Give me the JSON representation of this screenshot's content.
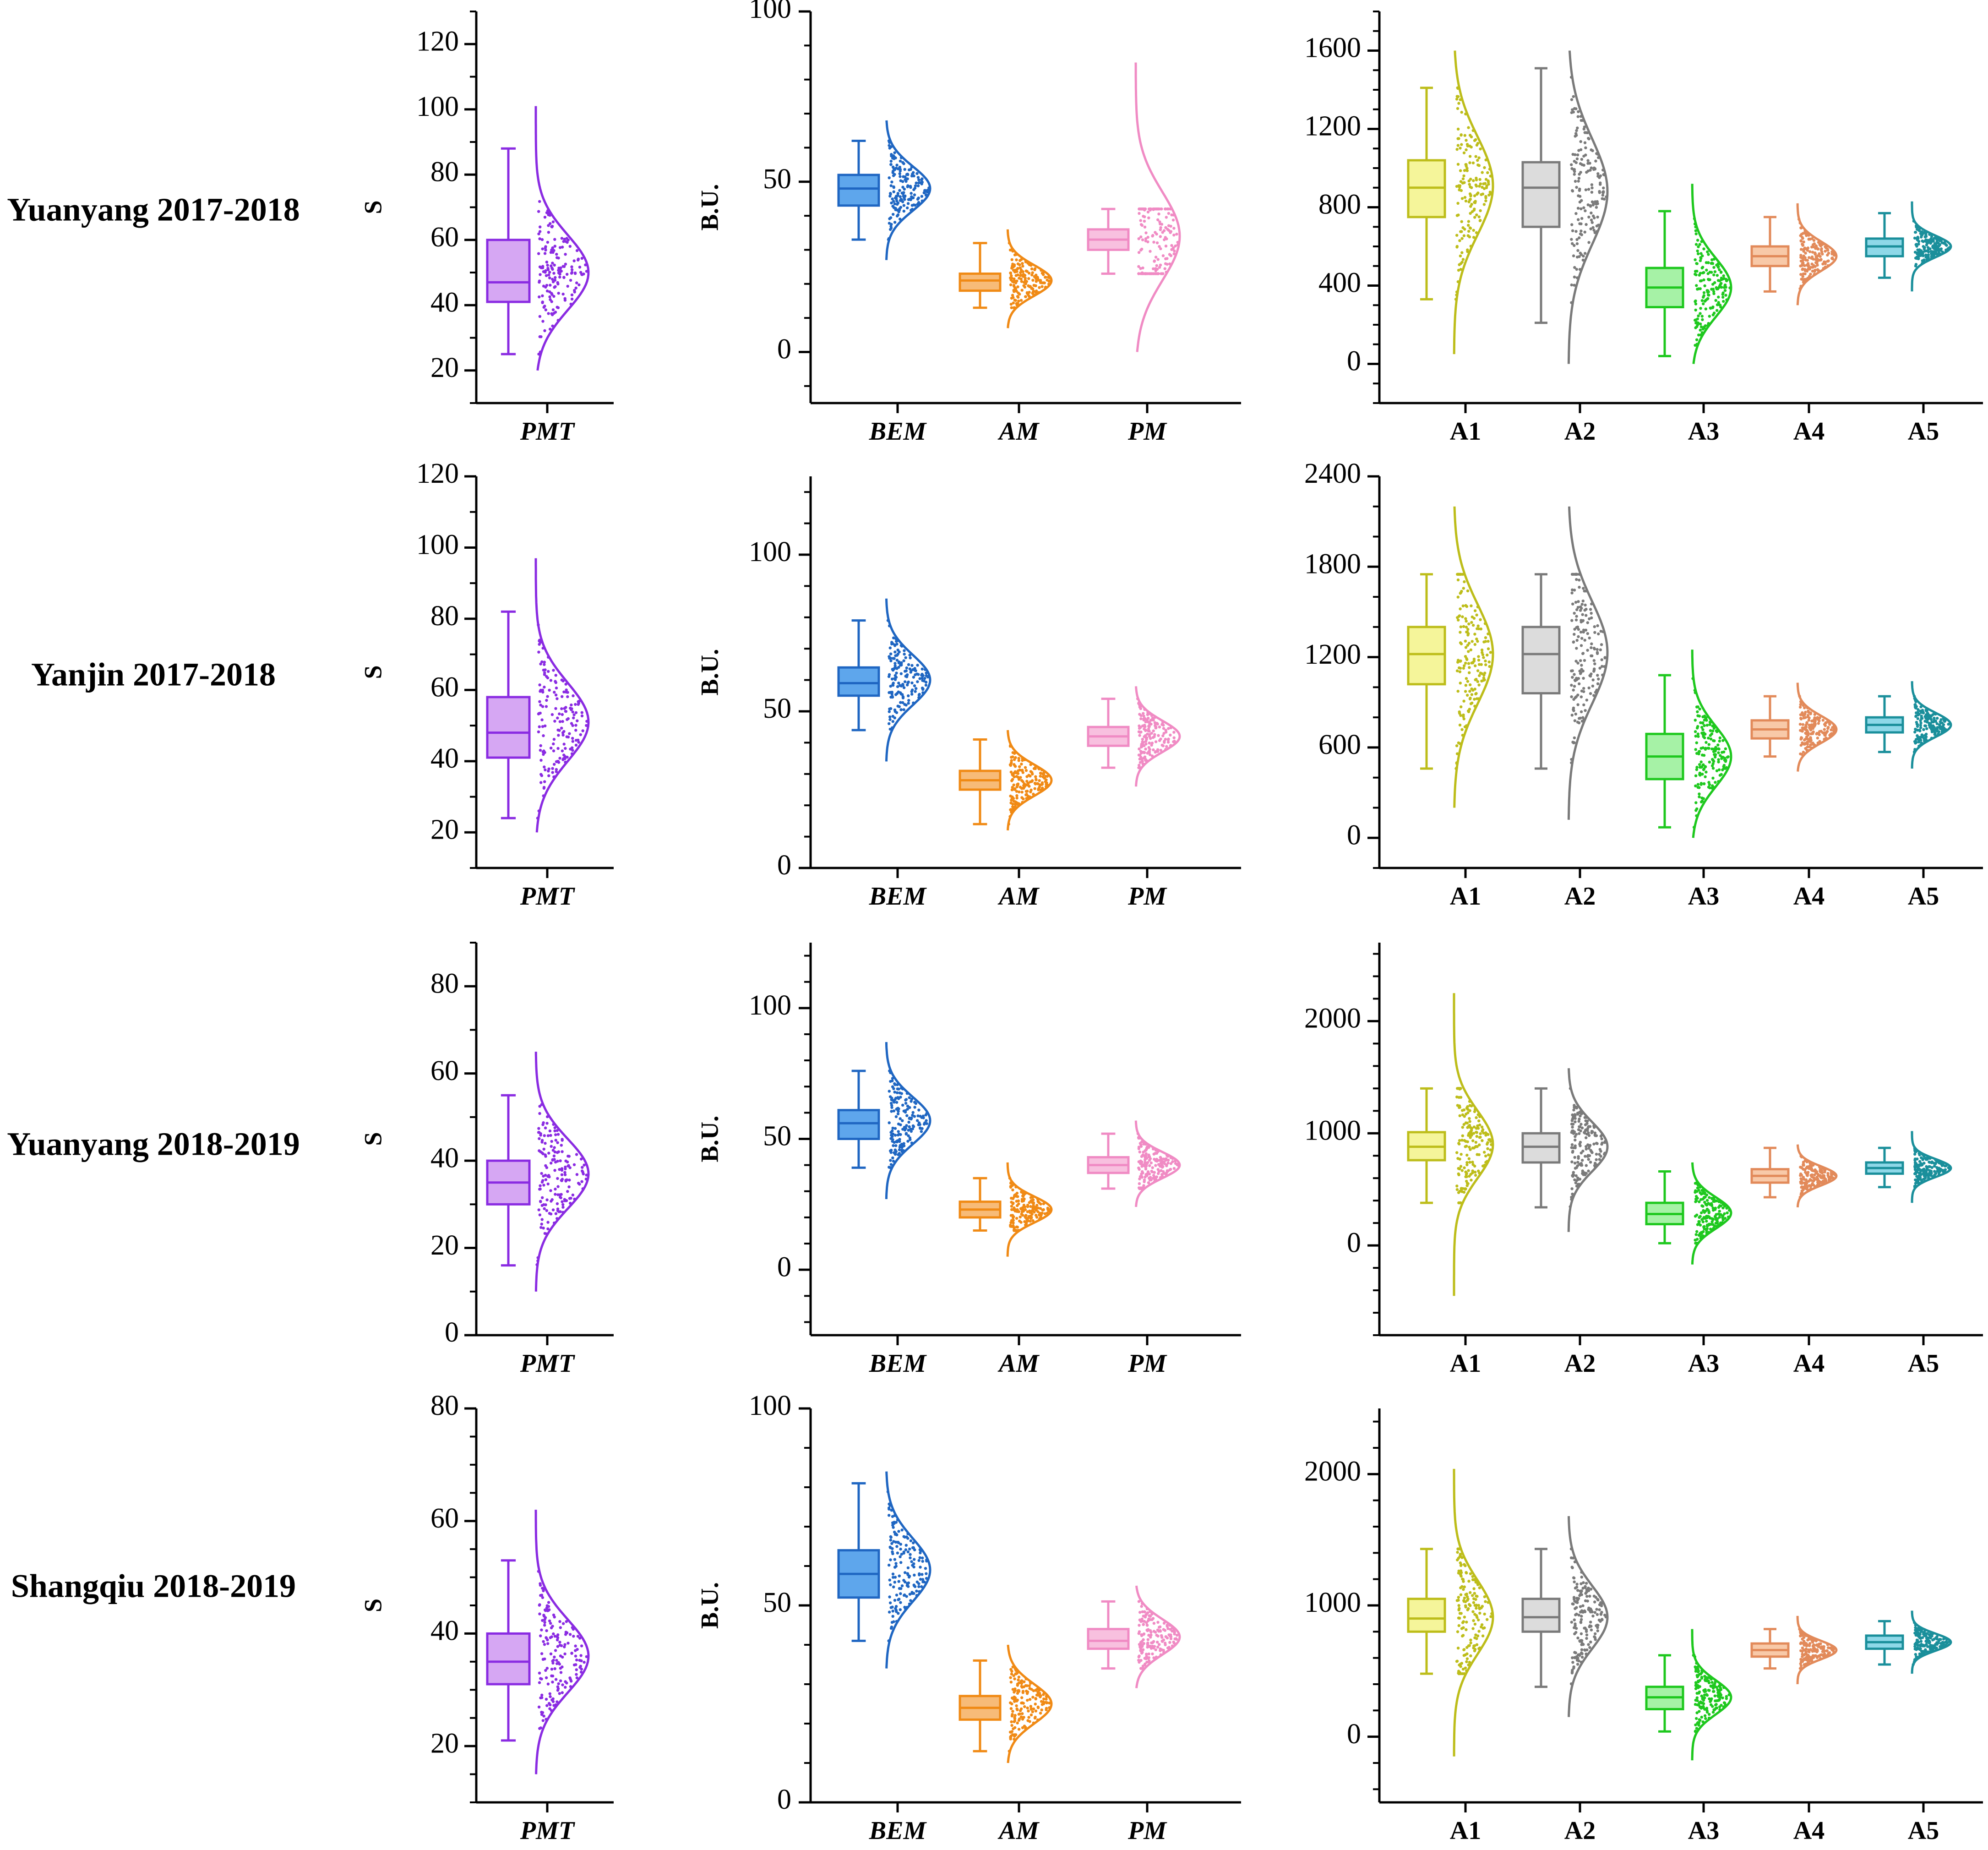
{
  "figure": {
    "rows": [
      {
        "label": "Yuanyang 2017-2018"
      },
      {
        "label": "Yanjin 2017-2018"
      },
      {
        "label": "Yuanyang 2018-2019"
      },
      {
        "label": "Shangqiu 2018-2019"
      }
    ]
  },
  "chart_data": [
    {
      "type": "box-violin",
      "row": 0,
      "title": "",
      "ylabel": "S",
      "ylim": [
        10,
        130
      ],
      "yticks": [
        20,
        40,
        60,
        80,
        100,
        120
      ],
      "ytick_labels": [
        "20",
        "40",
        "60",
        "80",
        "100",
        "120"
      ],
      "minor_step": 10,
      "categories": [
        "PMT"
      ],
      "category_italic": true,
      "series": [
        {
          "name": "PMT",
          "color": "#8a2be2",
          "fill": "#d6a7f3",
          "min": 25,
          "q1": 41,
          "median": 47,
          "q3": 60,
          "max": 88,
          "curve_lo": 20,
          "curve_hi": 101,
          "mean": 50,
          "sd": 11.5
        }
      ]
    },
    {
      "type": "box-violin",
      "row": 0,
      "title": "",
      "ylabel": "B.U.",
      "ylim": [
        -15,
        100
      ],
      "yticks": [
        0,
        50,
        100
      ],
      "ytick_labels": [
        "0",
        "50",
        "100"
      ],
      "minor_step": 10,
      "categories": [
        "BEM",
        "AM",
        "PM"
      ],
      "category_italic": true,
      "series": [
        {
          "name": "BEM",
          "color": "#1f66c2",
          "fill": "#5ea6ec",
          "min": 33,
          "q1": 43,
          "median": 48,
          "q3": 52,
          "max": 62,
          "curve_lo": 27,
          "curve_hi": 68,
          "mean": 48,
          "sd": 6.5
        },
        {
          "name": "AM",
          "color": "#f08a15",
          "fill": "#f7bb78",
          "min": 13,
          "q1": 18,
          "median": 21,
          "q3": 23,
          "max": 32,
          "curve_lo": 7,
          "curve_hi": 36,
          "mean": 21,
          "sd": 4.5
        },
        {
          "name": "PM",
          "color": "#f08bc4",
          "fill": "#f8c0df",
          "min": 23,
          "q1": 30,
          "median": 33,
          "q3": 36,
          "max": 42,
          "curve_lo": 0,
          "curve_hi": 85,
          "mean": 34,
          "sd": 13
        }
      ]
    },
    {
      "type": "box-violin",
      "row": 0,
      "title": "",
      "ylabel": "",
      "ylim": [
        -200,
        1800
      ],
      "yticks": [
        0,
        400,
        800,
        1200,
        1600
      ],
      "ytick_labels": [
        "0",
        "400",
        "800",
        "1200",
        "1600"
      ],
      "minor_step": 100,
      "categories": [
        "A1",
        "A2",
        "A3",
        "A4",
        "A5"
      ],
      "category_italic": false,
      "series": [
        {
          "name": "A1",
          "color": "#bdbd1a",
          "fill": "#f5f59a",
          "min": 330,
          "q1": 750,
          "median": 900,
          "q3": 1040,
          "max": 1410,
          "curve_lo": 50,
          "curve_hi": 1600,
          "mean": 910,
          "sd": 250
        },
        {
          "name": "A2",
          "color": "#7a7a7a",
          "fill": "#dcdcdc",
          "min": 210,
          "q1": 700,
          "median": 900,
          "q3": 1030,
          "max": 1510,
          "curve_lo": 0,
          "curve_hi": 1600,
          "mean": 880,
          "sd": 270
        },
        {
          "name": "A3",
          "color": "#1ec81e",
          "fill": "#a6f2a6",
          "min": 40,
          "q1": 290,
          "median": 390,
          "q3": 490,
          "max": 780,
          "curve_lo": 0,
          "curve_hi": 920,
          "mean": 390,
          "sd": 150
        },
        {
          "name": "A4",
          "color": "#e28a5a",
          "fill": "#f8c9a8",
          "min": 370,
          "q1": 500,
          "median": 550,
          "q3": 600,
          "max": 750,
          "curve_lo": 300,
          "curve_hi": 820,
          "mean": 550,
          "sd": 75
        },
        {
          "name": "A5",
          "color": "#1a8f9b",
          "fill": "#8ed8e8",
          "min": 440,
          "q1": 550,
          "median": 600,
          "q3": 640,
          "max": 770,
          "curve_lo": 370,
          "curve_hi": 830,
          "mean": 600,
          "sd": 55
        }
      ]
    },
    {
      "type": "box-violin",
      "row": 1,
      "title": "",
      "ylabel": "S",
      "ylim": [
        10,
        120
      ],
      "yticks": [
        20,
        40,
        60,
        80,
        100,
        120
      ],
      "ytick_labels": [
        "20",
        "40",
        "60",
        "80",
        "100",
        "120"
      ],
      "minor_step": 10,
      "categories": [
        "PMT"
      ],
      "category_italic": true,
      "series": [
        {
          "name": "PMT",
          "color": "#8a2be2",
          "fill": "#d6a7f3",
          "min": 24,
          "q1": 41,
          "median": 48,
          "q3": 58,
          "max": 82,
          "curve_lo": 20,
          "curve_hi": 97,
          "mean": 51,
          "sd": 11
        }
      ]
    },
    {
      "type": "box-violin",
      "row": 1,
      "title": "",
      "ylabel": "B.U.",
      "ylim": [
        0,
        125
      ],
      "yticks": [
        0,
        50,
        100
      ],
      "ytick_labels": [
        "0",
        "50",
        "100"
      ],
      "minor_step": 10,
      "categories": [
        "BEM",
        "AM",
        "PM"
      ],
      "category_italic": true,
      "series": [
        {
          "name": "BEM",
          "color": "#1f66c2",
          "fill": "#5ea6ec",
          "min": 44,
          "q1": 55,
          "median": 59,
          "q3": 64,
          "max": 79,
          "curve_lo": 34,
          "curve_hi": 86,
          "mean": 60,
          "sd": 8
        },
        {
          "name": "AM",
          "color": "#f08a15",
          "fill": "#f7bb78",
          "min": 14,
          "q1": 25,
          "median": 28,
          "q3": 31,
          "max": 41,
          "curve_lo": 12,
          "curve_hi": 44,
          "mean": 28,
          "sd": 5
        },
        {
          "name": "PM",
          "color": "#f08bc4",
          "fill": "#f8c0df",
          "min": 32,
          "q1": 39,
          "median": 42,
          "q3": 45,
          "max": 54,
          "curve_lo": 26,
          "curve_hi": 58,
          "mean": 42,
          "sd": 5
        }
      ]
    },
    {
      "type": "box-violin",
      "row": 1,
      "title": "",
      "ylabel": "",
      "ylim": [
        -200,
        2400
      ],
      "yticks": [
        0,
        600,
        1200,
        1800,
        2400
      ],
      "ytick_labels": [
        "0",
        "600",
        "1200",
        "1800",
        "2400"
      ],
      "minor_step": 200,
      "categories": [
        "A1",
        "A2",
        "A3",
        "A4",
        "A5"
      ],
      "category_italic": false,
      "series": [
        {
          "name": "A1",
          "color": "#bdbd1a",
          "fill": "#f5f59a",
          "min": 460,
          "q1": 1020,
          "median": 1220,
          "q3": 1400,
          "max": 1750,
          "curve_lo": 200,
          "curve_hi": 2200,
          "mean": 1220,
          "sd": 330
        },
        {
          "name": "A2",
          "color": "#7a7a7a",
          "fill": "#dcdcdc",
          "min": 460,
          "q1": 960,
          "median": 1220,
          "q3": 1400,
          "max": 1750,
          "curve_lo": 120,
          "curve_hi": 2200,
          "mean": 1230,
          "sd": 340
        },
        {
          "name": "A3",
          "color": "#1ec81e",
          "fill": "#a6f2a6",
          "min": 70,
          "q1": 390,
          "median": 540,
          "q3": 690,
          "max": 1080,
          "curve_lo": 0,
          "curve_hi": 1250,
          "mean": 540,
          "sd": 200
        },
        {
          "name": "A4",
          "color": "#e28a5a",
          "fill": "#f8c9a8",
          "min": 540,
          "q1": 660,
          "median": 720,
          "q3": 780,
          "max": 940,
          "curve_lo": 440,
          "curve_hi": 1030,
          "mean": 720,
          "sd": 90
        },
        {
          "name": "A5",
          "color": "#1a8f9b",
          "fill": "#8ed8e8",
          "min": 570,
          "q1": 700,
          "median": 750,
          "q3": 800,
          "max": 940,
          "curve_lo": 460,
          "curve_hi": 1040,
          "mean": 750,
          "sd": 80
        }
      ]
    },
    {
      "type": "box-violin",
      "row": 2,
      "title": "",
      "ylabel": "S",
      "ylim": [
        0,
        90
      ],
      "yticks": [
        0,
        20,
        40,
        60,
        80
      ],
      "ytick_labels": [
        "0",
        "20",
        "40",
        "60",
        "80"
      ],
      "minor_step": 10,
      "categories": [
        "PMT"
      ],
      "category_italic": true,
      "series": [
        {
          "name": "PMT",
          "color": "#8a2be2",
          "fill": "#d6a7f3",
          "min": 16,
          "q1": 30,
          "median": 35,
          "q3": 40,
          "max": 55,
          "curve_lo": 10,
          "curve_hi": 65,
          "mean": 37,
          "sd": 8
        }
      ]
    },
    {
      "type": "box-violin",
      "row": 2,
      "title": "",
      "ylabel": "B.U.",
      "ylim": [
        -25,
        125
      ],
      "yticks": [
        0,
        50,
        100
      ],
      "ytick_labels": [
        "0",
        "50",
        "100"
      ],
      "minor_step": 10,
      "categories": [
        "BEM",
        "AM",
        "PM"
      ],
      "category_italic": true,
      "series": [
        {
          "name": "BEM",
          "color": "#1f66c2",
          "fill": "#5ea6ec",
          "min": 39,
          "q1": 50,
          "median": 56,
          "q3": 61,
          "max": 76,
          "curve_lo": 27,
          "curve_hi": 87,
          "mean": 57,
          "sd": 9
        },
        {
          "name": "AM",
          "color": "#f08a15",
          "fill": "#f7bb78",
          "min": 15,
          "q1": 20,
          "median": 23,
          "q3": 26,
          "max": 35,
          "curve_lo": 5,
          "curve_hi": 41,
          "mean": 23,
          "sd": 5
        },
        {
          "name": "PM",
          "color": "#f08bc4",
          "fill": "#f8c0df",
          "min": 31,
          "q1": 37,
          "median": 40,
          "q3": 43,
          "max": 52,
          "curve_lo": 24,
          "curve_hi": 57,
          "mean": 40,
          "sd": 5
        }
      ]
    },
    {
      "type": "box-violin",
      "row": 2,
      "title": "",
      "ylabel": "",
      "ylim": [
        -800,
        2700
      ],
      "yticks": [
        0,
        1000,
        2000
      ],
      "ytick_labels": [
        "0",
        "1000",
        "2000"
      ],
      "minor_step": 200,
      "categories": [
        "A1",
        "A2",
        "A3",
        "A4",
        "A5"
      ],
      "category_italic": false,
      "series": [
        {
          "name": "A1",
          "color": "#bdbd1a",
          "fill": "#f5f59a",
          "min": 380,
          "q1": 760,
          "median": 880,
          "q3": 1010,
          "max": 1400,
          "curve_lo": -450,
          "curve_hi": 2250,
          "mean": 900,
          "sd": 300
        },
        {
          "name": "A2",
          "color": "#7a7a7a",
          "fill": "#dcdcdc",
          "min": 340,
          "q1": 740,
          "median": 880,
          "q3": 1000,
          "max": 1400,
          "curve_lo": 120,
          "curve_hi": 1580,
          "mean": 880,
          "sd": 220
        },
        {
          "name": "A3",
          "color": "#1ec81e",
          "fill": "#a6f2a6",
          "min": 20,
          "q1": 190,
          "median": 280,
          "q3": 380,
          "max": 660,
          "curve_lo": -170,
          "curve_hi": 740,
          "mean": 290,
          "sd": 140
        },
        {
          "name": "A4",
          "color": "#e28a5a",
          "fill": "#f8c9a8",
          "min": 430,
          "q1": 560,
          "median": 620,
          "q3": 680,
          "max": 870,
          "curve_lo": 340,
          "curve_hi": 900,
          "mean": 620,
          "sd": 85
        },
        {
          "name": "A5",
          "color": "#1a8f9b",
          "fill": "#8ed8e8",
          "min": 520,
          "q1": 640,
          "median": 690,
          "q3": 740,
          "max": 870,
          "curve_lo": 380,
          "curve_hi": 1020,
          "mean": 690,
          "sd": 80
        }
      ]
    },
    {
      "type": "box-violin",
      "row": 3,
      "title": "",
      "ylabel": "S",
      "ylim": [
        10,
        80
      ],
      "yticks": [
        20,
        40,
        60,
        80
      ],
      "ytick_labels": [
        "20",
        "40",
        "60",
        "80"
      ],
      "minor_step": 5,
      "categories": [
        "PMT"
      ],
      "category_italic": true,
      "series": [
        {
          "name": "PMT",
          "color": "#8a2be2",
          "fill": "#d6a7f3",
          "min": 21,
          "q1": 31,
          "median": 35,
          "q3": 40,
          "max": 53,
          "curve_lo": 15,
          "curve_hi": 62,
          "mean": 36,
          "sd": 6.5
        }
      ]
    },
    {
      "type": "box-violin",
      "row": 3,
      "title": "",
      "ylabel": "B.U.",
      "ylim": [
        0,
        100
      ],
      "yticks": [
        0,
        50,
        100
      ],
      "ytick_labels": [
        "0",
        "50",
        "100"
      ],
      "minor_step": 10,
      "categories": [
        "BEM",
        "AM",
        "PM"
      ],
      "category_italic": true,
      "series": [
        {
          "name": "BEM",
          "color": "#1f66c2",
          "fill": "#5ea6ec",
          "min": 41,
          "q1": 52,
          "median": 58,
          "q3": 64,
          "max": 81,
          "curve_lo": 34,
          "curve_hi": 84,
          "mean": 59,
          "sd": 8
        },
        {
          "name": "AM",
          "color": "#f08a15",
          "fill": "#f7bb78",
          "min": 13,
          "q1": 21,
          "median": 24,
          "q3": 27,
          "max": 36,
          "curve_lo": 10,
          "curve_hi": 40,
          "mean": 25,
          "sd": 5
        },
        {
          "name": "PM",
          "color": "#f08bc4",
          "fill": "#f8c0df",
          "min": 34,
          "q1": 39,
          "median": 41,
          "q3": 44,
          "max": 51,
          "curve_lo": 29,
          "curve_hi": 55,
          "mean": 42,
          "sd": 4.5
        }
      ]
    },
    {
      "type": "box-violin",
      "row": 3,
      "title": "",
      "ylabel": "",
      "ylim": [
        -500,
        2500
      ],
      "yticks": [
        0,
        1000,
        2000
      ],
      "ytick_labels": [
        "0",
        "1000",
        "2000"
      ],
      "minor_step": 200,
      "categories": [
        "A1",
        "A2",
        "A3",
        "A4",
        "A5"
      ],
      "category_italic": false,
      "series": [
        {
          "name": "A1",
          "color": "#bdbd1a",
          "fill": "#f5f59a",
          "min": 480,
          "q1": 800,
          "median": 900,
          "q3": 1050,
          "max": 1430,
          "curve_lo": -150,
          "curve_hi": 2040,
          "mean": 910,
          "sd": 280
        },
        {
          "name": "A2",
          "color": "#7a7a7a",
          "fill": "#dcdcdc",
          "min": 380,
          "q1": 800,
          "median": 910,
          "q3": 1050,
          "max": 1430,
          "curve_lo": 150,
          "curve_hi": 1680,
          "mean": 910,
          "sd": 240
        },
        {
          "name": "A3",
          "color": "#1ec81e",
          "fill": "#a6f2a6",
          "min": 40,
          "q1": 210,
          "median": 300,
          "q3": 380,
          "max": 620,
          "curve_lo": -180,
          "curve_hi": 820,
          "mean": 300,
          "sd": 130
        },
        {
          "name": "A4",
          "color": "#e28a5a",
          "fill": "#f8c9a8",
          "min": 520,
          "q1": 610,
          "median": 660,
          "q3": 710,
          "max": 820,
          "curve_lo": 400,
          "curve_hi": 920,
          "mean": 660,
          "sd": 70
        },
        {
          "name": "A5",
          "color": "#1a8f9b",
          "fill": "#8ed8e8",
          "min": 550,
          "q1": 670,
          "median": 720,
          "q3": 770,
          "max": 880,
          "curve_lo": 480,
          "curve_hi": 960,
          "mean": 720,
          "sd": 65
        }
      ]
    }
  ]
}
